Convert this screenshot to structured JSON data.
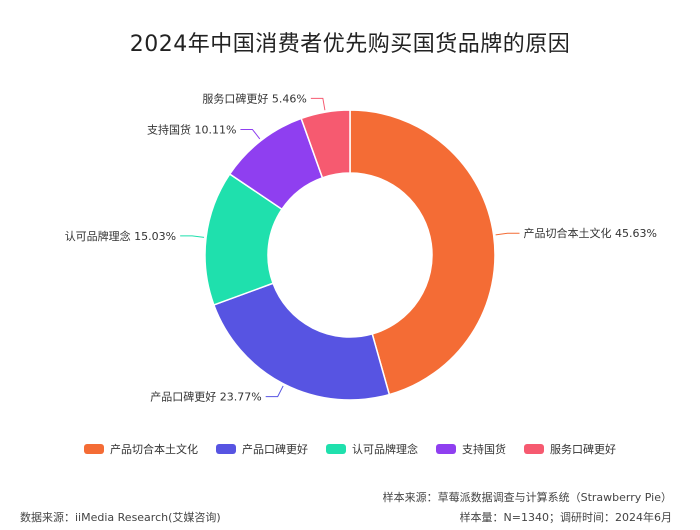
{
  "chart_data": {
    "type": "pie",
    "title": "2024年中国消费者优先购买国货品牌的原因",
    "categories": [
      "产品切合本土文化",
      "产品口碑更好",
      "认可品牌理念",
      "支持国货",
      "服务口碑更好"
    ],
    "values": [
      45.63,
      23.77,
      15.03,
      10.11,
      5.46
    ],
    "value_unit": "%",
    "data_labels": [
      "产品切合本土文化 45.63%",
      "产品口碑更好 23.77%",
      "认可品牌理念 15.03%",
      "支持国货 10.11%",
      "服务口碑更好 5.46%"
    ],
    "colors": [
      "#f46c35",
      "#5754e2",
      "#1fe0ad",
      "#8f3ff0",
      "#f65a70"
    ],
    "donut": true,
    "legend_position": "bottom"
  },
  "legend": {
    "items": [
      "产品切合本土文化",
      "产品口碑更好",
      "认可品牌理念",
      "支持国货",
      "服务口碑更好"
    ]
  },
  "footer": {
    "source_left": "数据来源：iiMedia Research(艾媒咨询)",
    "sample_source": "样本来源：草莓派数据调查与计算系统（Strawberry Pie）",
    "sample_info": "样本量：N=1340；调研时间：2024年6月"
  }
}
